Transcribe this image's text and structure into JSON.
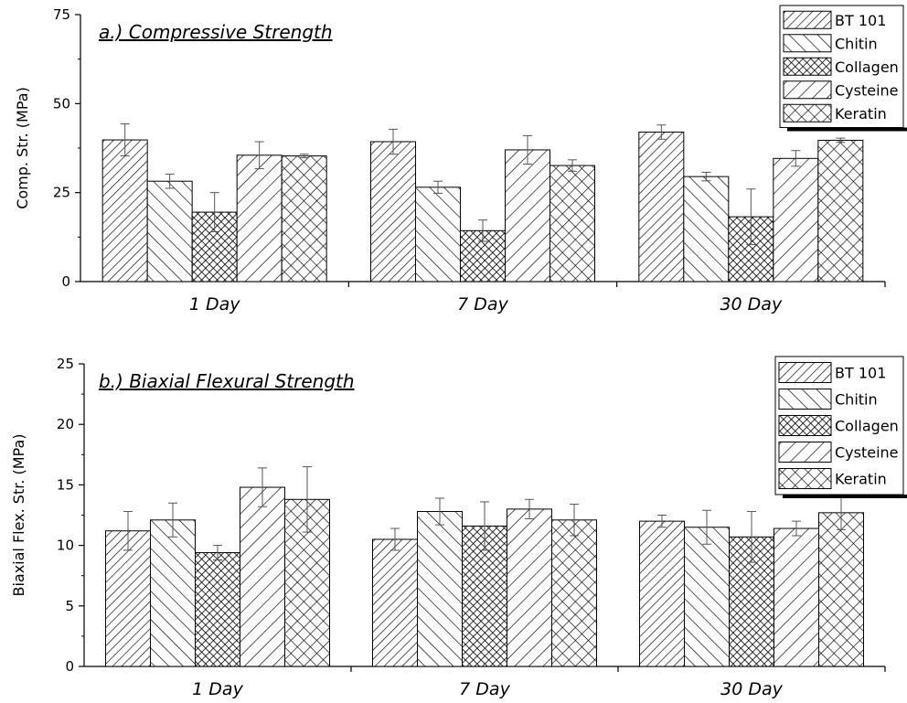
{
  "chart_data": [
    {
      "type": "bar",
      "title": "a.) Compressive Strength",
      "ylabel": "Comp. Str. (MPa)",
      "xlabel": "",
      "ylim": [
        0,
        75
      ],
      "yticks": [
        0,
        25,
        50,
        75
      ],
      "categories": [
        "1 Day",
        "7 Day",
        "30 Day"
      ],
      "legend_position": "top-right",
      "grid": false,
      "series": [
        {
          "name": "BT 101",
          "pattern": "hatch-forward",
          "values": [
            39.8,
            39.3,
            42.0
          ],
          "errors": [
            4.5,
            3.5,
            2.0
          ]
        },
        {
          "name": "Chitin",
          "pattern": "hatch-back",
          "values": [
            28.2,
            26.5,
            29.5
          ],
          "errors": [
            2.0,
            1.7,
            1.2
          ]
        },
        {
          "name": "Collagen",
          "pattern": "cross-dense",
          "values": [
            19.5,
            14.3,
            18.2
          ],
          "errors": [
            5.5,
            3.0,
            7.8
          ]
        },
        {
          "name": "Cysteine",
          "pattern": "hatch-forward-wide",
          "values": [
            35.5,
            37.0,
            34.6
          ],
          "errors": [
            3.8,
            4.0,
            2.2
          ]
        },
        {
          "name": "Keratin",
          "pattern": "cross-wide",
          "values": [
            35.3,
            32.6,
            39.7
          ],
          "errors": [
            0.5,
            1.6,
            0.6
          ]
        }
      ]
    },
    {
      "type": "bar",
      "title": "b.) Biaxial Flexural Strength",
      "ylabel": "Biaxial Flex. Str. (MPa)",
      "xlabel": "",
      "ylim": [
        0,
        25
      ],
      "yticks": [
        0,
        5,
        10,
        15,
        20,
        25
      ],
      "categories": [
        "1 Day",
        "7 Day",
        "30 Day"
      ],
      "legend_position": "top-right",
      "grid": false,
      "series": [
        {
          "name": "BT 101",
          "pattern": "hatch-forward",
          "values": [
            11.2,
            10.5,
            12.0
          ],
          "errors": [
            1.6,
            0.9,
            0.5
          ]
        },
        {
          "name": "Chitin",
          "pattern": "hatch-back",
          "values": [
            12.1,
            12.8,
            11.5
          ],
          "errors": [
            1.4,
            1.1,
            1.4
          ]
        },
        {
          "name": "Collagen",
          "pattern": "cross-dense",
          "values": [
            9.4,
            11.6,
            10.7
          ],
          "errors": [
            0.6,
            2.0,
            2.1
          ]
        },
        {
          "name": "Cysteine",
          "pattern": "hatch-forward-wide",
          "values": [
            14.8,
            13.0,
            11.4
          ],
          "errors": [
            1.6,
            0.8,
            0.6
          ]
        },
        {
          "name": "Keratin",
          "pattern": "cross-wide",
          "values": [
            13.8,
            12.1,
            12.7
          ],
          "errors": [
            2.7,
            1.3,
            1.4
          ]
        }
      ]
    }
  ]
}
